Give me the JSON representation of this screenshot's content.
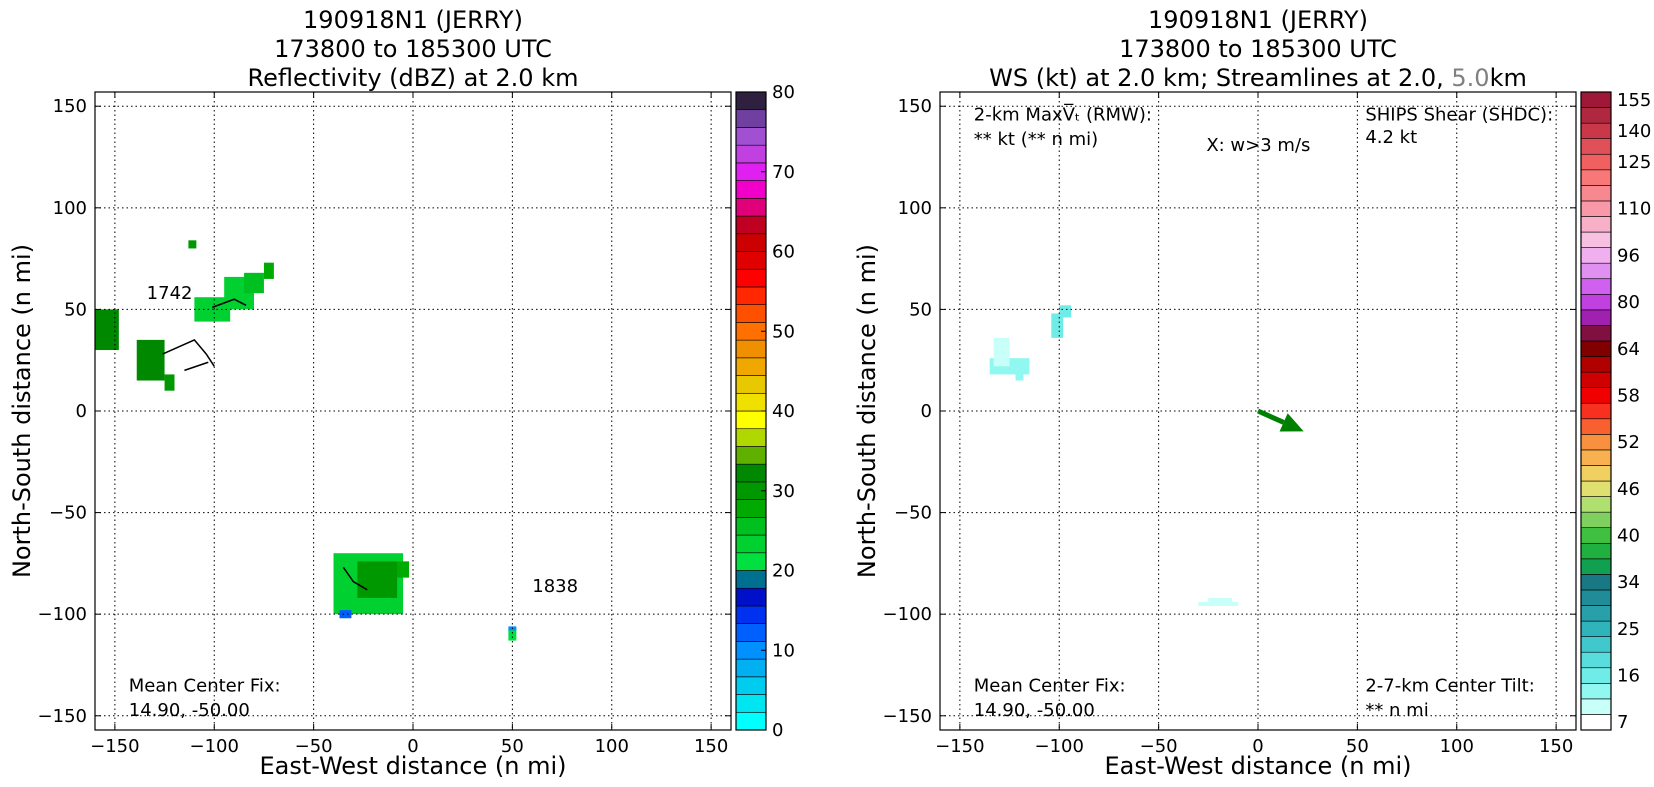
{
  "chart_data": [
    {
      "type": "heatmap",
      "title": [
        "190918N1 (JERRY)",
        "173800 to 185300 UTC",
        "Reflectivity (dBZ) at 2.0 km"
      ],
      "xlabel": "East-West distance (n mi)",
      "ylabel": "North-South distance (n mi)",
      "xlim": [
        -160,
        160
      ],
      "ylim": [
        -157,
        157
      ],
      "xticks": [
        -150,
        -100,
        -50,
        0,
        50,
        100,
        150
      ],
      "yticks": [
        -150,
        -100,
        -50,
        0,
        50,
        100,
        150
      ],
      "xtick_labels": [
        "−150",
        "−100",
        "−50",
        "0",
        "50",
        "100",
        "150"
      ],
      "ytick_labels": [
        "−150",
        "−100",
        "−50",
        "0",
        "50",
        "100",
        "150"
      ],
      "grid": true,
      "annotations": [
        {
          "text": "Mean Center Fix:",
          "x": -143,
          "y": -138
        },
        {
          "text": "14.90, -50.00",
          "x": -143,
          "y": -150
        },
        {
          "text": "1742",
          "x": -134,
          "y": 55,
          "color": "#666666"
        },
        {
          "text": "1838",
          "x": 60,
          "y": -89,
          "color": "#666666"
        }
      ],
      "colorbar": {
        "min": 0,
        "max": 80,
        "step": 2.5,
        "ticks": [
          0,
          10,
          20,
          30,
          40,
          50,
          60,
          70,
          80
        ],
        "tick_labels": [
          "0",
          "10",
          "20",
          "30",
          "40",
          "50",
          "60",
          "70",
          "80"
        ],
        "colors": [
          "#00ffff",
          "#00e6f0",
          "#00ccf0",
          "#00b0f0",
          "#0090ff",
          "#0060ff",
          "#0030f0",
          "#0010c8",
          "#007090",
          "#00e040",
          "#00d030",
          "#00c020",
          "#00aa00",
          "#009800",
          "#008800",
          "#60b000",
          "#b0d800",
          "#ffff00",
          "#f0e000",
          "#e8c800",
          "#f0a800",
          "#f09000",
          "#ff7000",
          "#ff5000",
          "#ff2800",
          "#ff0000",
          "#e00000",
          "#cc0000",
          "#c00020",
          "#e0007a",
          "#f000c8",
          "#e020f0",
          "#c040e0",
          "#a050d0",
          "#7040a0",
          "#302040"
        ]
      },
      "patches": [
        {
          "x": -160,
          "y": 30,
          "w": 12,
          "h": 20,
          "value": 37
        },
        {
          "x": -139,
          "y": 15,
          "w": 14,
          "h": 20,
          "value": 36
        },
        {
          "x": -125,
          "y": 10,
          "w": 5,
          "h": 8,
          "value": 33
        },
        {
          "x": -113,
          "y": 80,
          "w": 4,
          "h": 4,
          "value": 34
        },
        {
          "x": -110,
          "y": 44,
          "w": 18,
          "h": 12,
          "value": 25
        },
        {
          "x": -95,
          "y": 50,
          "w": 15,
          "h": 16,
          "value": 26
        },
        {
          "x": -85,
          "y": 58,
          "w": 10,
          "h": 10,
          "value": 28
        },
        {
          "x": -75,
          "y": 65,
          "w": 5,
          "h": 8,
          "value": 30
        },
        {
          "x": -40,
          "y": -100,
          "w": 35,
          "h": 30,
          "value": 26
        },
        {
          "x": -28,
          "y": -92,
          "w": 20,
          "h": 18,
          "value": 33
        },
        {
          "x": -8,
          "y": -82,
          "w": 6,
          "h": 8,
          "value": 31
        },
        {
          "x": -37,
          "y": -102,
          "w": 6,
          "h": 4,
          "value": 14
        },
        {
          "x": 48,
          "y": -113,
          "w": 4,
          "h": 6,
          "value": 24
        },
        {
          "x": 48,
          "y": -108,
          "w": 4,
          "h": 2,
          "value": 12
        }
      ],
      "streamlines": [
        [
          [
            -126,
            28
          ],
          [
            -110,
            35
          ],
          [
            -104,
            28
          ],
          [
            -100,
            22
          ]
        ],
        [
          [
            -115,
            20
          ],
          [
            -103,
            24
          ]
        ],
        [
          [
            -101,
            51
          ],
          [
            -90,
            55
          ],
          [
            -84,
            52
          ]
        ],
        [
          [
            -35,
            -77
          ],
          [
            -30,
            -84
          ],
          [
            -23,
            -88
          ]
        ]
      ]
    },
    {
      "type": "heatmap",
      "title": [
        "190918N1 (JERRY)",
        "173800 to 185300 UTC",
        "WS (kt) at 2.0 km; Streamlines at 2.0, 5.0km"
      ],
      "xlabel": "East-West distance (n mi)",
      "ylabel": "North-South distance (n mi)",
      "xlim": [
        -160,
        160
      ],
      "ylim": [
        -157,
        157
      ],
      "xticks": [
        -150,
        -100,
        -50,
        0,
        50,
        100,
        150
      ],
      "yticks": [
        -150,
        -100,
        -50,
        0,
        50,
        100,
        150
      ],
      "xtick_labels": [
        "−150",
        "−100",
        "−50",
        "0",
        "50",
        "100",
        "150"
      ],
      "ytick_labels": [
        "−150",
        "−100",
        "−50",
        "0",
        "50",
        "100",
        "150"
      ],
      "grid": true,
      "annotations": [
        {
          "text": "2-km MaxV̅ₜ (RMW):",
          "x": -143,
          "y": 143
        },
        {
          "text": "** kt (** n mi)",
          "x": -143,
          "y": 131
        },
        {
          "text": "X: w>3 m/s",
          "x": -26,
          "y": 128
        },
        {
          "text": "SHIPS Shear (SHDC):",
          "x": 54,
          "y": 143,
          "color": "#008000"
        },
        {
          "text": "4.2 kt",
          "x": 54,
          "y": 132,
          "color": "#008000"
        },
        {
          "text": "Mean Center Fix:",
          "x": -143,
          "y": -138
        },
        {
          "text": "14.90, -50.00",
          "x": -143,
          "y": -150
        },
        {
          "text": "2-7-km Center Tilt:",
          "x": 54,
          "y": -138,
          "color": "#ff0000"
        },
        {
          "text": "** n mi",
          "x": 54,
          "y": -150,
          "color": "#ff0000"
        }
      ],
      "shear_vector": {
        "from": [
          0,
          0
        ],
        "to": [
          23,
          -10
        ],
        "color": "#008000"
      },
      "colorbar": {
        "min": 7,
        "max": 160,
        "tick_values": [
          7,
          16,
          25,
          34,
          40,
          46,
          52,
          58,
          64,
          80,
          96,
          110,
          125,
          140,
          155
        ],
        "tick_labels": [
          "7",
          "16",
          "25",
          "34",
          "40",
          "46",
          "52",
          "58",
          "64",
          "80",
          "96",
          "110",
          "125",
          "140",
          "155"
        ],
        "colors": [
          "#ffffff",
          "#c8fff8",
          "#90f8f0",
          "#70ece8",
          "#58dcdc",
          "#40c8cc",
          "#30b4bc",
          "#28a0aa",
          "#208c98",
          "#187884",
          "#10a050",
          "#20b040",
          "#40c040",
          "#80d060",
          "#b0e070",
          "#e0e070",
          "#f0d060",
          "#f8b050",
          "#f89040",
          "#f86030",
          "#f83020",
          "#f00000",
          "#d00000",
          "#b00000",
          "#800000",
          "#801040",
          "#a020b0",
          "#c040e0",
          "#d060f0",
          "#e090f0",
          "#f0b0f0",
          "#f8c0e0",
          "#f8b0c8",
          "#f898a8",
          "#f88890",
          "#f87878",
          "#f06060",
          "#e05058",
          "#c83848",
          "#b02840",
          "#a01838"
        ]
      },
      "patches": [
        {
          "x": -135,
          "y": 18,
          "w": 20,
          "h": 8,
          "value": 18
        },
        {
          "x": -133,
          "y": 22,
          "w": 8,
          "h": 14,
          "value": 12
        },
        {
          "x": -122,
          "y": 15,
          "w": 4,
          "h": 6,
          "value": 18
        },
        {
          "x": -104,
          "y": 36,
          "w": 6,
          "h": 12,
          "value": 20
        },
        {
          "x": -100,
          "y": 46,
          "w": 6,
          "h": 6,
          "value": 20
        },
        {
          "x": -25,
          "y": -95,
          "w": 12,
          "h": 3,
          "value": 11
        },
        {
          "x": -30,
          "y": -96,
          "w": 20,
          "h": 2,
          "value": 13
        }
      ]
    }
  ]
}
